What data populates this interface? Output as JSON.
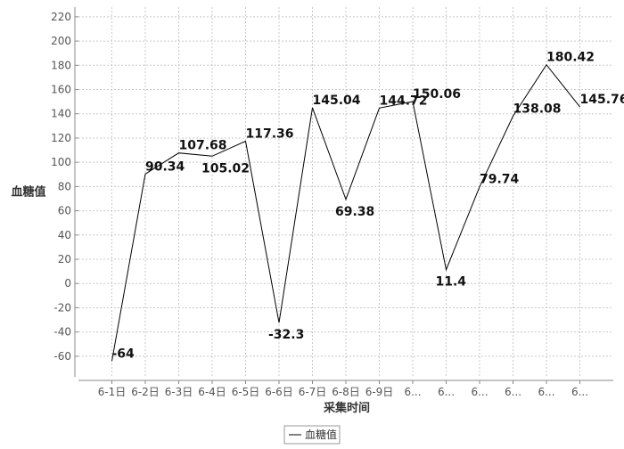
{
  "chart_data": {
    "type": "line",
    "title": "",
    "xlabel": "采集时间",
    "ylabel": "血糖值",
    "categories": [
      "6-1日",
      "6-2日",
      "6-3日",
      "6-4日",
      "6-5日",
      "6-6日",
      "6-7日",
      "6-8日",
      "6-9日",
      "6...",
      "6...",
      "6...",
      "6...",
      "6...",
      "6..."
    ],
    "series": [
      {
        "name": "血糖值",
        "color": "#000000",
        "values": [
          -64,
          90.34,
          107.68,
          105.02,
          117.36,
          -32.3,
          145.04,
          69.38,
          144.72,
          150.06,
          11.4,
          79.74,
          138.08,
          180.42,
          145.76
        ],
        "labels": [
          "-64",
          "90.34",
          "107.68",
          "105.02",
          "117.36",
          "-32.3",
          "145.04",
          "69.38",
          "144.72",
          "150.06",
          "11.4",
          "79.74",
          "138.08",
          "180.42",
          "145.76"
        ]
      }
    ],
    "y_ticks": [
      -60,
      -40,
      -20,
      0,
      20,
      40,
      60,
      80,
      100,
      120,
      140,
      160,
      180,
      200,
      220
    ],
    "y_tick_labels": [
      "-60",
      "-40",
      "-20",
      "0",
      "20",
      "40",
      "60",
      "80",
      "100",
      "120",
      "140",
      "160",
      "180",
      "200",
      "220"
    ],
    "ylim": [
      -77,
      228
    ],
    "grid": true,
    "legend": "bottom-center"
  }
}
